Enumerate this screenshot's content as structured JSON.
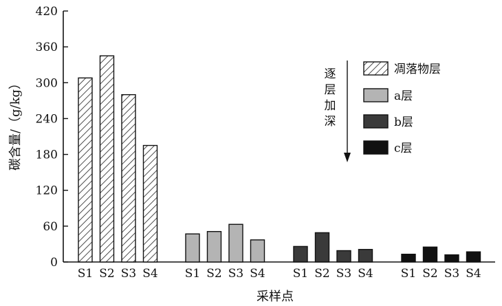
{
  "chart_data": {
    "type": "bar",
    "xlabel": "采样点",
    "ylabel": "碳含量/（g/kg）",
    "ylim": [
      0,
      420
    ],
    "yticks": [
      0,
      60,
      120,
      180,
      240,
      300,
      360,
      420
    ],
    "categories": [
      "S1",
      "S2",
      "S3",
      "S4"
    ],
    "grid": false,
    "legend_position": "right",
    "series": [
      {
        "name": "凋落物层",
        "fill": "hatch",
        "values": [
          308,
          345,
          280,
          195
        ]
      },
      {
        "name": "a层",
        "fill": "#b4b4b4",
        "values": [
          47,
          51,
          63,
          37
        ]
      },
      {
        "name": "b层",
        "fill": "#3a3a3a",
        "values": [
          26,
          49,
          19,
          21
        ]
      },
      {
        "name": "c层",
        "fill": "#111111",
        "values": [
          13,
          25,
          12,
          17
        ]
      }
    ],
    "annotation": "逐层加深"
  }
}
